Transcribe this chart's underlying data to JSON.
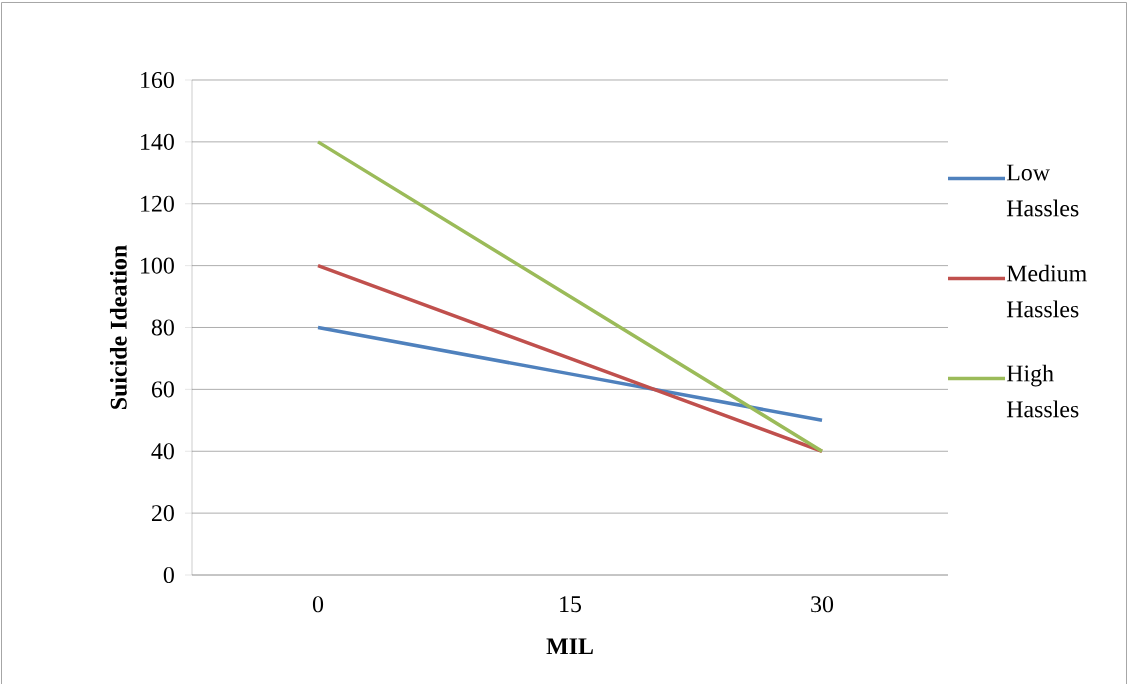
{
  "chart_data": {
    "type": "line",
    "xlabel": "MIL",
    "ylabel": "Suicide Ideation",
    "categories": [
      "0",
      "15",
      "30"
    ],
    "series": [
      {
        "name": "Low Hassles",
        "color": "#4f81bd",
        "values": [
          80,
          65,
          50
        ]
      },
      {
        "name": "Medium Hassles",
        "color": "#c0504d",
        "values": [
          100,
          70,
          40
        ]
      },
      {
        "name": "High Hassles",
        "color": "#9bbb59",
        "values": [
          140,
          90,
          40
        ]
      }
    ],
    "ylim": [
      0,
      160
    ],
    "yticks": [
      0,
      20,
      40,
      60,
      80,
      100,
      120,
      140,
      160
    ],
    "grid": "y",
    "legend": "right",
    "marker": "none",
    "line_style": "solid"
  }
}
